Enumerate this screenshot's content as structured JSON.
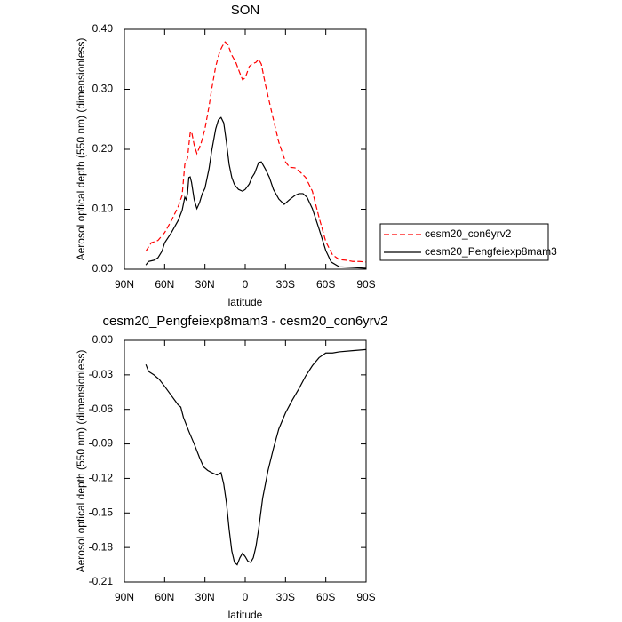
{
  "chart_data": [
    {
      "type": "line",
      "title": "SON",
      "xlabel": "latitude",
      "ylabel": "Aerosol optical depth (550 nm) (dimensionless)",
      "xlim": [
        90,
        -90
      ],
      "ylim": [
        0,
        0.4
      ],
      "xticks": [
        {
          "value": 90,
          "label": "90N"
        },
        {
          "value": 60,
          "label": "60N"
        },
        {
          "value": 30,
          "label": "30N"
        },
        0,
        {
          "value": -30,
          "label": "30S"
        },
        {
          "value": -60,
          "label": "60S"
        },
        {
          "value": -90,
          "label": "90S"
        }
      ],
      "yticks": [
        {
          "value": 0,
          "label": "0.00"
        },
        {
          "value": 0.1,
          "label": "0.10"
        },
        {
          "value": 0.2,
          "label": "0.20"
        },
        {
          "value": 0.3,
          "label": "0.30"
        },
        {
          "value": 0.4,
          "label": "0.40"
        }
      ],
      "legend": "right",
      "series": [
        {
          "name": "cesm20_con6yrv2",
          "color": "#ff0000",
          "dashed": true,
          "x": [
            74,
            70,
            65,
            60,
            55,
            50,
            47,
            45,
            43,
            41,
            40,
            38,
            36,
            33,
            30,
            27,
            25,
            22,
            19,
            17,
            15,
            13,
            10,
            7,
            4,
            2,
            0,
            -3,
            -5,
            -8,
            -10,
            -12,
            -15,
            -20,
            -25,
            -30,
            -33,
            -37,
            -40,
            -45,
            -50,
            -55,
            -60,
            -65,
            -70,
            -75,
            -80,
            -85,
            -90
          ],
          "values": [
            0.03,
            0.044,
            0.048,
            0.061,
            0.081,
            0.104,
            0.123,
            0.175,
            0.185,
            0.227,
            0.23,
            0.207,
            0.193,
            0.209,
            0.234,
            0.271,
            0.3,
            0.338,
            0.363,
            0.372,
            0.379,
            0.375,
            0.357,
            0.345,
            0.327,
            0.316,
            0.319,
            0.338,
            0.342,
            0.345,
            0.35,
            0.342,
            0.308,
            0.259,
            0.212,
            0.179,
            0.17,
            0.169,
            0.164,
            0.153,
            0.13,
            0.086,
            0.046,
            0.024,
            0.016,
            0.015,
            0.013,
            0.013,
            0.012
          ]
        },
        {
          "name": "cesm20_Pengfeiexp8mam3",
          "color": "#000000",
          "dashed": false,
          "x": [
            74,
            72,
            68,
            65,
            62,
            60,
            55,
            50,
            47,
            45,
            44,
            43,
            42,
            41,
            40,
            38,
            36,
            34,
            32,
            30,
            27,
            25,
            22,
            20,
            18,
            16,
            14,
            12,
            10,
            8,
            5,
            2,
            0,
            -3,
            -5,
            -7,
            -10,
            -12,
            -15,
            -18,
            -21,
            -25,
            -29,
            -33,
            -37,
            -40,
            -43,
            -46,
            -50,
            -55,
            -60,
            -64,
            -70,
            -80,
            -90
          ],
          "values": [
            0.007,
            0.013,
            0.015,
            0.019,
            0.03,
            0.044,
            0.061,
            0.081,
            0.098,
            0.12,
            0.116,
            0.126,
            0.153,
            0.154,
            0.145,
            0.116,
            0.101,
            0.111,
            0.126,
            0.135,
            0.167,
            0.197,
            0.234,
            0.249,
            0.253,
            0.244,
            0.212,
            0.175,
            0.153,
            0.141,
            0.133,
            0.13,
            0.133,
            0.142,
            0.153,
            0.16,
            0.178,
            0.179,
            0.167,
            0.153,
            0.133,
            0.117,
            0.108,
            0.116,
            0.123,
            0.126,
            0.126,
            0.12,
            0.101,
            0.067,
            0.031,
            0.012,
            0.004,
            0.003,
            0.0015
          ]
        }
      ]
    },
    {
      "type": "line",
      "title": "cesm20_Pengfeiexp8mam3 - cesm20_con6yrv2",
      "xlabel": "latitude",
      "ylabel": "Aerosol optical depth (550 nm) (dimensionless)",
      "xlim": [
        90,
        -90
      ],
      "ylim": [
        -0.21,
        0
      ],
      "xticks": [
        {
          "value": 90,
          "label": "90N"
        },
        {
          "value": 60,
          "label": "60N"
        },
        {
          "value": 30,
          "label": "30N"
        },
        0,
        {
          "value": -30,
          "label": "30S"
        },
        {
          "value": -60,
          "label": "60S"
        },
        {
          "value": -90,
          "label": "90S"
        }
      ],
      "yticks": [
        {
          "value": 0,
          "label": "0.00"
        },
        {
          "value": -0.03,
          "label": "-0.03"
        },
        {
          "value": -0.06,
          "label": "-0.06"
        },
        {
          "value": -0.09,
          "label": "-0.09"
        },
        {
          "value": -0.12,
          "label": "-0.12"
        },
        {
          "value": -0.15,
          "label": "-0.15"
        },
        {
          "value": -0.18,
          "label": "-0.18"
        },
        {
          "value": -0.21,
          "label": "-0.21"
        }
      ],
      "series": [
        {
          "color": "#000000",
          "dashed": false,
          "x": [
            74,
            72,
            68,
            64,
            60,
            55,
            50,
            48,
            46,
            42,
            38,
            34,
            31,
            28,
            25,
            21,
            18,
            16,
            14,
            12,
            10,
            8,
            6,
            4,
            2,
            0,
            -2,
            -4,
            -6,
            -8,
            -10,
            -13,
            -17,
            -21,
            -25,
            -30,
            -35,
            -40,
            -45,
            -50,
            -55,
            -60,
            -65,
            -70,
            -80,
            -90
          ],
          "values": [
            -0.021,
            -0.027,
            -0.03,
            -0.034,
            -0.04,
            -0.048,
            -0.056,
            -0.058,
            -0.067,
            -0.079,
            -0.09,
            -0.102,
            -0.11,
            -0.113,
            -0.115,
            -0.117,
            -0.115,
            -0.125,
            -0.141,
            -0.164,
            -0.183,
            -0.193,
            -0.195,
            -0.189,
            -0.185,
            -0.188,
            -0.192,
            -0.193,
            -0.189,
            -0.179,
            -0.164,
            -0.137,
            -0.113,
            -0.094,
            -0.077,
            -0.063,
            -0.052,
            -0.042,
            -0.031,
            -0.022,
            -0.015,
            -0.011,
            -0.011,
            -0.01,
            -0.009,
            -0.008
          ]
        }
      ]
    }
  ]
}
